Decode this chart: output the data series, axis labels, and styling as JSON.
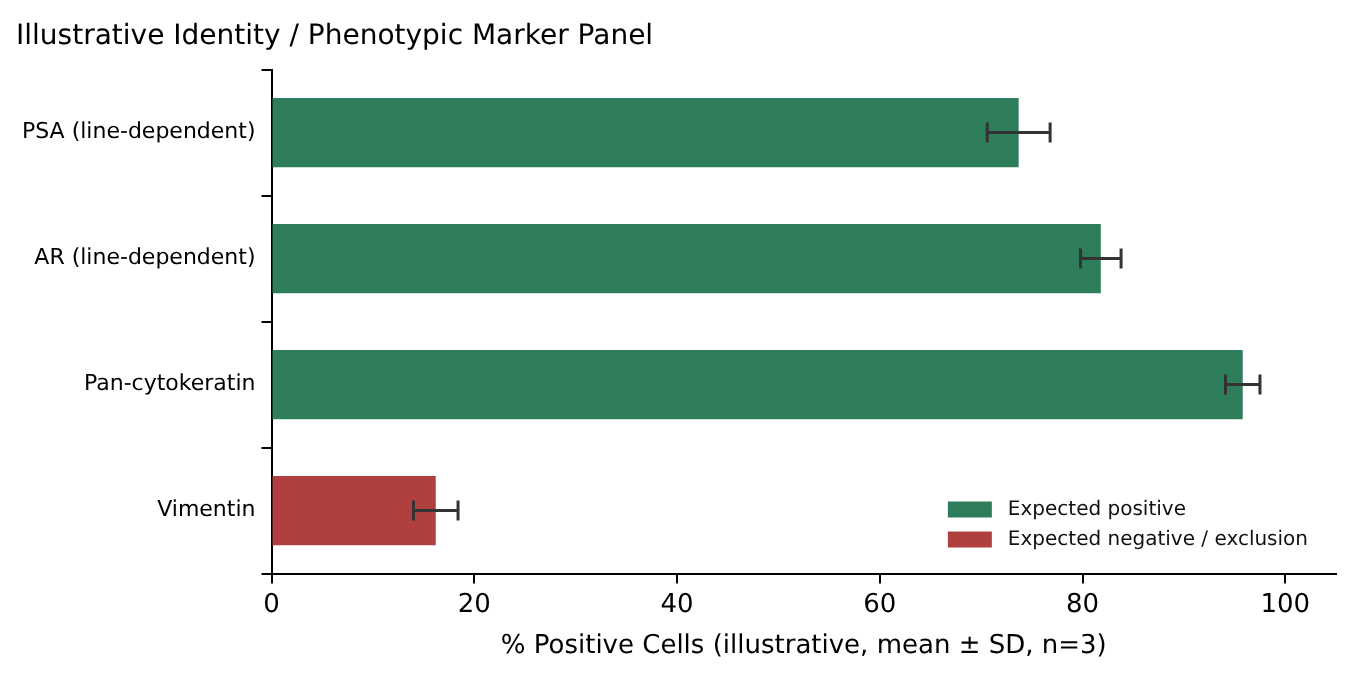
{
  "chart_data": {
    "type": "bar",
    "orientation": "horizontal",
    "stacked": true,
    "title": "Illustrative Identity / Phenotypic Marker Panel",
    "xlabel": "% Positive Cells (illustrative, mean ± SD, n=3)",
    "categories": [
      "PSA (line-dependent)",
      "AR (line-dependent)",
      "Pan-cytokeratin",
      "Vimentin"
    ],
    "series": [
      {
        "name": "Expected positive",
        "color": "#2e7d5b",
        "values": [
          73.7,
          81.8,
          95.8,
          null
        ],
        "errors": [
          3.1,
          2.0,
          1.7,
          null
        ]
      },
      {
        "name": "Expected negative / exclusion",
        "color": "#b03f3f",
        "values": [
          null,
          null,
          null,
          16.2
        ],
        "errors": [
          null,
          null,
          null,
          2.2
        ]
      }
    ],
    "xlim": [
      0,
      105
    ],
    "xticks": [
      0,
      20,
      40,
      60,
      80,
      100
    ],
    "grid": false,
    "legend": "bottom right"
  }
}
